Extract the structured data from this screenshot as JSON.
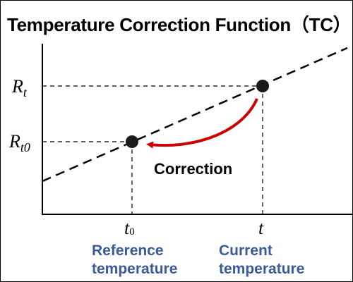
{
  "title": "Temperature Correction Function（TC）",
  "labels": {
    "rt_main": "R",
    "rt_sub": "t",
    "rt0_main": "R",
    "rt0_sub": "t0",
    "t0_main": "t",
    "t0_sub": "0",
    "t_main": "t",
    "correction": "Correction",
    "reference_line1": "Reference",
    "reference_line2": "temperature",
    "current_line1": "Current",
    "current_line2": "temperature"
  },
  "colors": {
    "axis": "#000000",
    "dashed_line": "#000000",
    "guide_lines": "#000000",
    "points": "#1a1a1a",
    "correction_arrow": "#cc0000",
    "temperature_labels": "#3a5a9a"
  }
}
